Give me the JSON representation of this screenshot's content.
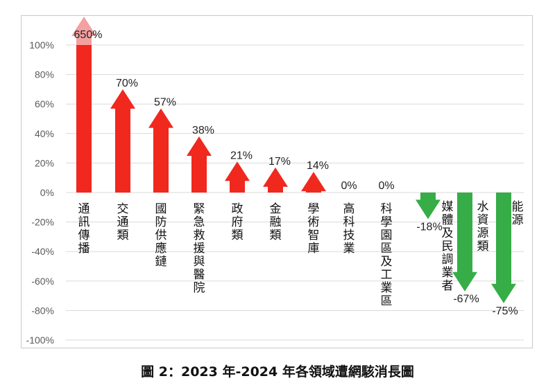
{
  "chart_data": {
    "type": "bar",
    "style": "arrows",
    "title": "圖 2：2023 年-2024 年各領域遭網駭消長圖",
    "categories": [
      "通訊傳播",
      "交通類",
      "國防供應鏈",
      "緊急救援與醫院",
      "政府類",
      "金融類",
      "學術智庫",
      "高科技業",
      "科學園區及工業區",
      "媒體及民調業者",
      "水資源類",
      "能源"
    ],
    "values": [
      650,
      70,
      57,
      38,
      21,
      17,
      14,
      0,
      0,
      -18,
      -67,
      -75
    ],
    "data_labels": [
      "650%",
      "70%",
      "57%",
      "38%",
      "21%",
      "17%",
      "14%",
      "0%",
      "0%",
      "-18%",
      "-67%",
      "-75%"
    ],
    "ylim": [
      -100,
      100
    ],
    "yticks": [
      "100%",
      "80%",
      "60%",
      "40%",
      "20%",
      "0%",
      "-20%",
      "-40%",
      "-60%",
      "-80%",
      "-100%"
    ],
    "grid": true,
    "colors": {
      "positive": "#f0281e",
      "overflow": "#f4a0a0",
      "negative": "#36ad47"
    }
  }
}
